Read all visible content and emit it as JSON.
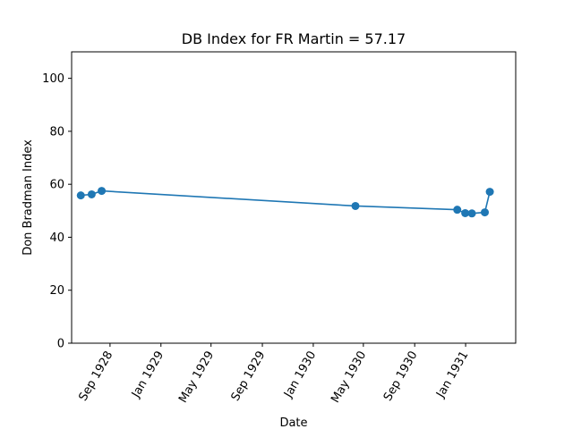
{
  "chart_data": {
    "type": "line",
    "title": "DB Index for FR Martin = 57.17",
    "xlabel": "Date",
    "ylabel": "Don Bradman Index",
    "ylim": [
      0,
      110
    ],
    "yticks": [
      0,
      20,
      40,
      60,
      80,
      100
    ],
    "xlim": [
      "1928-06-01",
      "1931-05-01"
    ],
    "xticks": [
      {
        "date": "1928-09-01",
        "label": "Sep 1928"
      },
      {
        "date": "1929-01-01",
        "label": "Jan 1929"
      },
      {
        "date": "1929-05-01",
        "label": "May 1929"
      },
      {
        "date": "1929-09-01",
        "label": "Sep 1929"
      },
      {
        "date": "1930-01-01",
        "label": "Jan 1930"
      },
      {
        "date": "1930-05-01",
        "label": "May 1930"
      },
      {
        "date": "1930-09-01",
        "label": "Sep 1930"
      },
      {
        "date": "1931-01-01",
        "label": "Jan 1931"
      }
    ],
    "grid": false,
    "color": "#1f77b4",
    "series": [
      {
        "points": [
          {
            "x": "1928-06-23",
            "y": 55.8
          },
          {
            "x": "1928-07-19",
            "y": 56.2
          },
          {
            "x": "1928-08-12",
            "y": 57.5
          },
          {
            "x": "1930-04-12",
            "y": 51.8
          },
          {
            "x": "1930-12-12",
            "y": 50.4
          },
          {
            "x": "1930-12-31",
            "y": 49.1
          },
          {
            "x": "1931-01-16",
            "y": 49.0
          },
          {
            "x": "1931-02-16",
            "y": 49.4
          },
          {
            "x": "1931-02-28",
            "y": 57.17
          }
        ]
      }
    ]
  }
}
